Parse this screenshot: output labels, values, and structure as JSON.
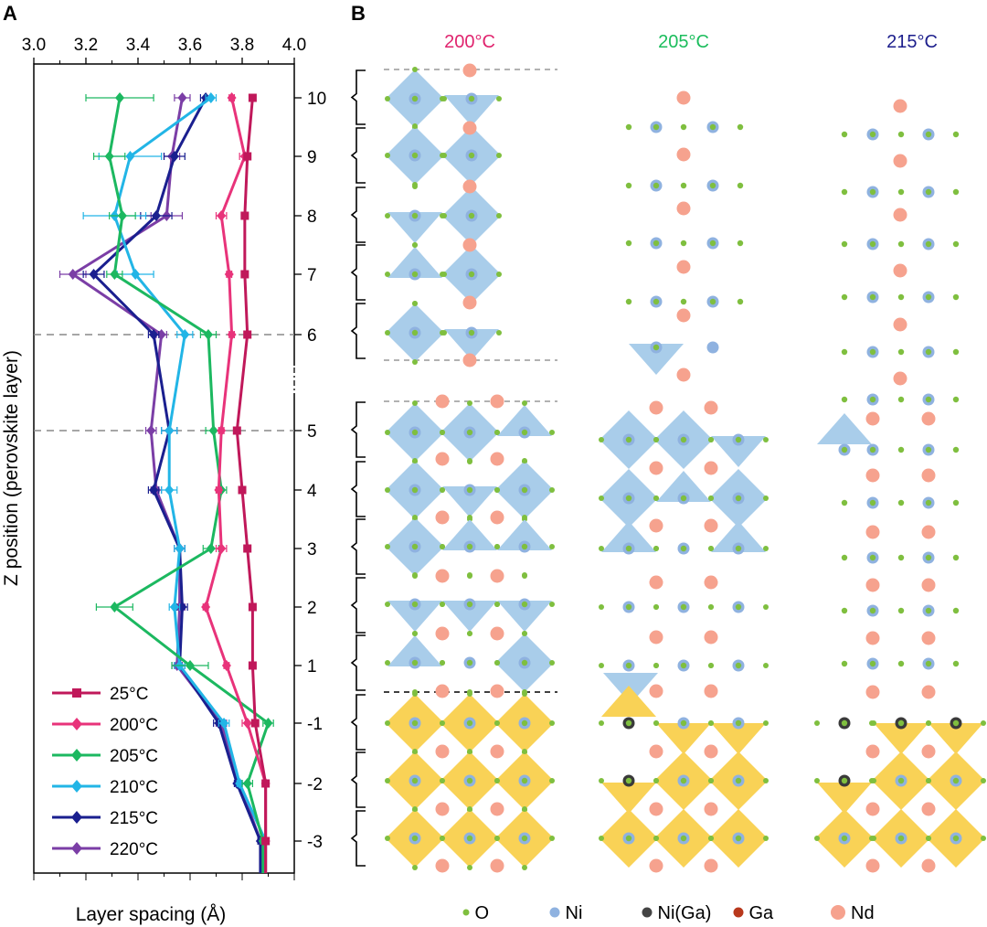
{
  "panel_a": {
    "letter": "A",
    "xlabel": "Layer spacing (Å)",
    "ylabel": "Z position (perovskite layer)",
    "x_ticks": [
      "3.0",
      "3.2",
      "3.4",
      "3.6",
      "3.8",
      "4.0"
    ],
    "y_ticks": [
      "10",
      "9",
      "8",
      "7",
      "6",
      "5",
      "4",
      "3",
      "2",
      "1",
      "-1",
      "-2",
      "-3"
    ]
  },
  "panel_b": {
    "letter": "B",
    "columns": [
      {
        "title": "200°C",
        "color": "#e0246e"
      },
      {
        "title": "205°C",
        "color": "#1bbd5c"
      },
      {
        "title": "215°C",
        "color": "#1c1e8c"
      }
    ],
    "legend": [
      {
        "label": "O",
        "color": "#7fbf3f",
        "kind": "o"
      },
      {
        "label": "Ni",
        "color": "#8fb2e0",
        "kind": "ni"
      },
      {
        "label": "Ni(Ga)",
        "color": "#444444",
        "kind": "niga"
      },
      {
        "label": "Ga",
        "color": "#b8381c",
        "kind": "ga"
      },
      {
        "label": "Nd",
        "color": "#f6a28e",
        "kind": "nd"
      }
    ]
  },
  "chart_data": {
    "type": "line",
    "title": "",
    "xlabel": "Layer spacing (Å)",
    "ylabel": "Z position (perovskite layer)",
    "xlim": [
      3.0,
      4.0
    ],
    "z_positions": [
      10,
      9,
      8,
      7,
      6,
      5,
      4,
      3,
      2,
      1,
      -1,
      -2,
      -3
    ],
    "legend_position": "bottom-left",
    "series": [
      {
        "name": "25°C",
        "color": "#c0185a",
        "marker": "square",
        "values": [
          3.84,
          3.82,
          3.81,
          3.81,
          3.82,
          3.78,
          3.8,
          3.82,
          3.84,
          3.84,
          3.85,
          3.89,
          3.89
        ],
        "errors": [
          0.01,
          0.01,
          0.01,
          0.01,
          0.01,
          0.01,
          0.01,
          0.01,
          0.01,
          0.01,
          0.01,
          0.01,
          0.01
        ]
      },
      {
        "name": "200°C",
        "color": "#e8337a",
        "marker": "diamond",
        "values": [
          3.76,
          3.81,
          3.72,
          3.75,
          3.76,
          3.72,
          3.71,
          3.72,
          3.66,
          3.74,
          3.82,
          3.89,
          3.89
        ],
        "errors": [
          0.01,
          0.02,
          0.02,
          0.01,
          0.01,
          0.01,
          0.01,
          0.02,
          0.01,
          0.01,
          0.02,
          0.01,
          0.01
        ]
      },
      {
        "name": "205°C",
        "color": "#1cb860",
        "marker": "diamond",
        "values": [
          3.33,
          3.29,
          3.34,
          3.31,
          3.67,
          3.69,
          3.72,
          3.68,
          3.31,
          3.6,
          3.9,
          3.82,
          3.88
        ],
        "errors": [
          0.13,
          0.06,
          0.05,
          0.03,
          0.03,
          0.03,
          0.02,
          0.03,
          0.07,
          0.07,
          0.02,
          0.02,
          0.01
        ]
      },
      {
        "name": "210°C",
        "color": "#22b5e6",
        "marker": "diamond",
        "values": [
          3.68,
          3.37,
          3.31,
          3.39,
          3.58,
          3.52,
          3.52,
          3.56,
          3.54,
          3.56,
          3.73,
          3.79,
          3.89
        ],
        "errors": [
          0.02,
          0.12,
          0.12,
          0.07,
          0.03,
          0.03,
          0.03,
          0.02,
          0.02,
          0.02,
          0.02,
          0.01,
          0.01
        ]
      },
      {
        "name": "215°C",
        "color": "#1a1f8f",
        "marker": "diamond",
        "values": [
          3.66,
          3.54,
          3.47,
          3.23,
          3.46,
          3.52,
          3.46,
          3.56,
          3.57,
          3.56,
          3.71,
          3.78,
          3.87
        ],
        "errors": [
          0.02,
          0.04,
          0.06,
          0.04,
          0.02,
          0.03,
          0.02,
          0.02,
          0.02,
          0.02,
          0.02,
          0.01,
          0.01
        ]
      },
      {
        "name": "220°C",
        "color": "#7b3ea6",
        "marker": "diamond",
        "values": [
          3.57,
          3.53,
          3.51,
          3.15,
          3.49,
          3.45,
          3.47,
          3.56,
          3.56,
          3.55,
          3.72,
          3.79,
          3.87
        ],
        "errors": [
          0.03,
          0.03,
          0.06,
          0.05,
          0.02,
          0.02,
          0.02,
          0.02,
          0.02,
          0.02,
          0.02,
          0.01,
          0.01
        ]
      }
    ]
  }
}
